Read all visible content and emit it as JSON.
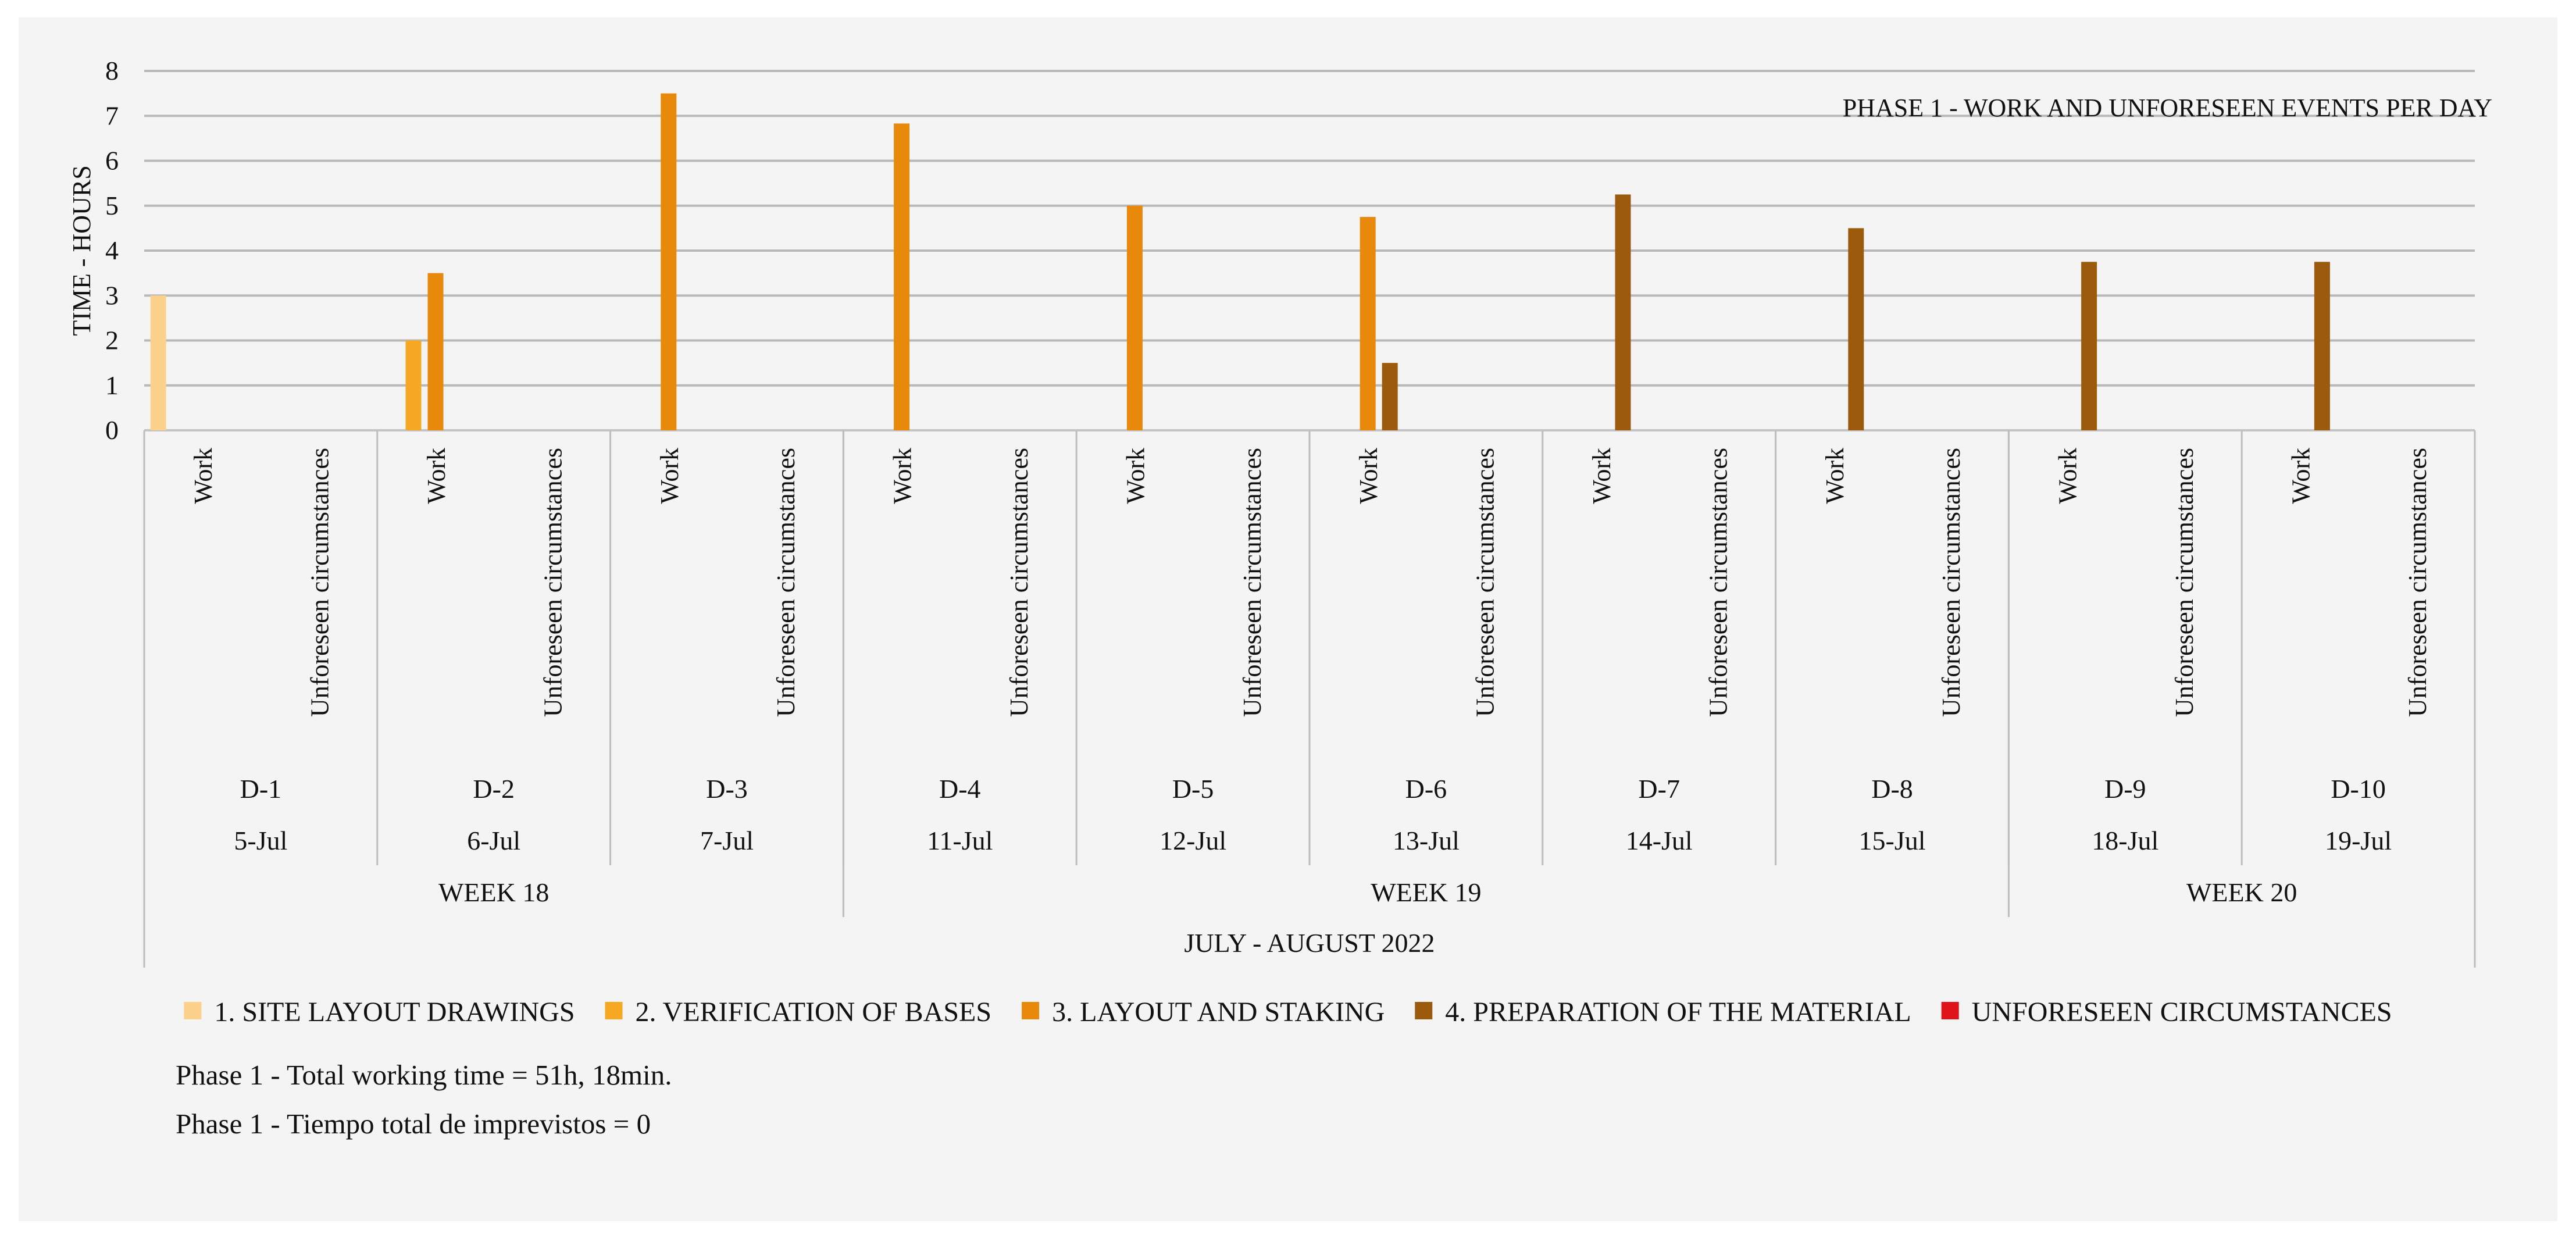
{
  "chart_data": {
    "type": "bar",
    "title": "PHASE 1 - WORK AND UNFORESEEN EVENTS PER DAY",
    "ylabel": "TIME - HOURS",
    "ylim": [
      0,
      8
    ],
    "yticks": [
      "0",
      "1",
      "2",
      "3",
      "4",
      "5",
      "6",
      "7",
      "8"
    ],
    "grid": true,
    "legend_position": "bottom",
    "subcategories": [
      "Work",
      "Unforeseen circumstances"
    ],
    "days": [
      "D-1",
      "D-2",
      "D-3",
      "D-4",
      "D-5",
      "D-6",
      "D-7",
      "D-8",
      "D-9",
      "D-10"
    ],
    "dates": [
      "5-Jul",
      "6-Jul",
      "7-Jul",
      "11-Jul",
      "12-Jul",
      "13-Jul",
      "14-Jul",
      "15-Jul",
      "18-Jul",
      "19-Jul"
    ],
    "weeks": [
      {
        "label": "WEEK 18",
        "days": 3
      },
      {
        "label": "WEEK 19",
        "days": 5
      },
      {
        "label": "WEEK 20",
        "days": 2
      }
    ],
    "period": "JULY - AUGUST 2022",
    "series": [
      {
        "name": "1. SITE LAYOUT DRAWINGS",
        "color": "#fbd18b",
        "work": [
          3,
          0,
          0,
          0,
          0,
          0,
          0,
          0,
          0,
          0
        ],
        "unforeseen": [
          0,
          0,
          0,
          0,
          0,
          0,
          0,
          0,
          0,
          0
        ]
      },
      {
        "name": "2. VERIFICATION OF BASES",
        "color": "#f6a823",
        "work": [
          0,
          2,
          0,
          0,
          0,
          0,
          0,
          0,
          0,
          0
        ],
        "unforeseen": [
          0,
          0,
          0,
          0,
          0,
          0,
          0,
          0,
          0,
          0
        ]
      },
      {
        "name": "3. LAYOUT AND STAKING",
        "color": "#e8890c",
        "work": [
          0,
          3.5,
          7.5,
          6.83,
          5,
          4.75,
          0,
          0,
          0,
          0
        ],
        "unforeseen": [
          0,
          0,
          0,
          0,
          0,
          0,
          0,
          0,
          0,
          0
        ]
      },
      {
        "name": "4. PREPARATION OF THE MATERIAL",
        "color": "#9c5a0d",
        "work": [
          0,
          0,
          0,
          0,
          0,
          1.5,
          5.25,
          4.5,
          3.75,
          3.75
        ],
        "unforeseen": [
          0,
          0,
          0,
          0,
          0,
          0,
          0,
          0,
          0,
          0
        ]
      },
      {
        "name": "UNFORESEEN CIRCUMSTANCES",
        "color": "#e0131b",
        "work": [
          0,
          0,
          0,
          0,
          0,
          0,
          0,
          0,
          0,
          0
        ],
        "unforeseen": [
          0,
          0,
          0,
          0,
          0,
          0,
          0,
          0,
          0,
          0
        ]
      }
    ]
  },
  "notes": {
    "total_work": "Phase 1 - Total working time = 51h, 18min.",
    "total_unforeseen": "Phase 1 - Tiempo total de imprevistos = 0"
  }
}
